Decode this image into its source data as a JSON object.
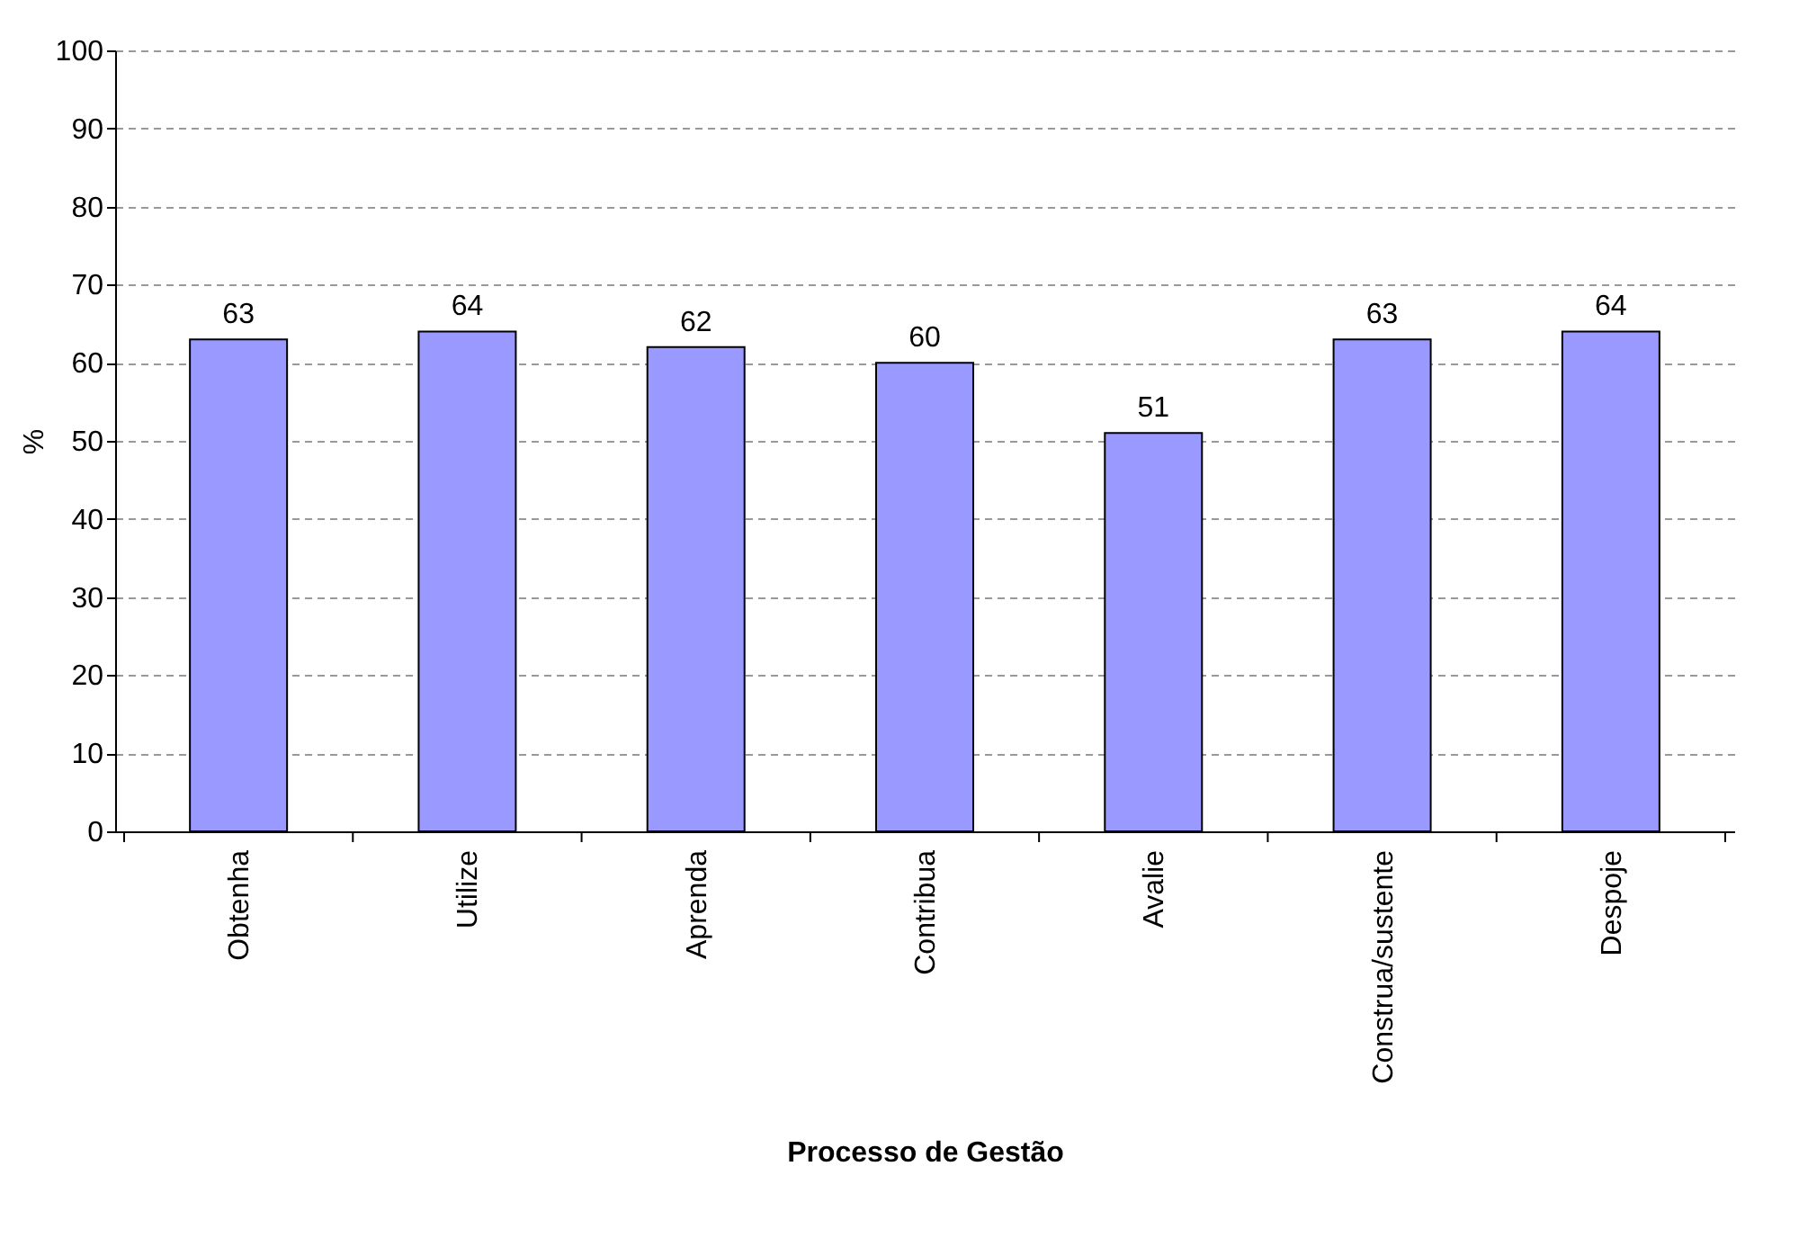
{
  "chart_data": {
    "type": "bar",
    "xlabel": "Processo de Gestão",
    "ylabel": "%",
    "categories": [
      "Obtenha",
      "Utilize",
      "Aprenda",
      "Contribua",
      "Avalie",
      "Construa/sustente",
      "Despoje"
    ],
    "values": [
      63,
      64,
      62,
      60,
      51,
      63,
      64
    ],
    "color": "#9999ff",
    "ylim": [
      0,
      100
    ],
    "yticks": [
      0,
      10,
      20,
      30,
      40,
      50,
      60,
      70,
      80,
      90,
      100
    ],
    "grid": "y",
    "data_labels": true
  }
}
